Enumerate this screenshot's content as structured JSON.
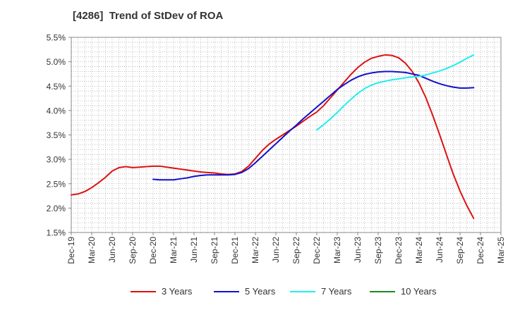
{
  "chart_data": {
    "type": "line",
    "title": "[4286]  Trend of StDev of ROA",
    "xlabel": "",
    "ylabel": "",
    "x_ticks": [
      "Dec-19",
      "Mar-20",
      "Jun-20",
      "Sep-20",
      "Dec-20",
      "Mar-21",
      "Jun-21",
      "Sep-21",
      "Dec-21",
      "Mar-22",
      "Jun-22",
      "Sep-22",
      "Dec-22",
      "Mar-23",
      "Jun-23",
      "Sep-23",
      "Dec-23",
      "Mar-24",
      "Jun-24",
      "Sep-24",
      "Dec-24",
      "Mar-25"
    ],
    "y_ticks": [
      "1.5%",
      "2.0%",
      "2.5%",
      "3.0%",
      "3.5%",
      "4.0%",
      "4.5%",
      "5.0%",
      "5.5%"
    ],
    "ylim": [
      1.5,
      5.5
    ],
    "y_unit": "%",
    "grid": true,
    "legend_position": "bottom",
    "series": [
      {
        "name": "3 Years",
        "color": "#dd1111",
        "points": [
          [
            "Dec-19",
            2.27
          ],
          [
            "Jan-20",
            2.29
          ],
          [
            "Feb-20",
            2.34
          ],
          [
            "Mar-20",
            2.42
          ],
          [
            "Apr-20",
            2.52
          ],
          [
            "May-20",
            2.63
          ],
          [
            "Jun-20",
            2.76
          ],
          [
            "Jul-20",
            2.83
          ],
          [
            "Aug-20",
            2.85
          ],
          [
            "Sep-20",
            2.83
          ],
          [
            "Oct-20",
            2.84
          ],
          [
            "Nov-20",
            2.85
          ],
          [
            "Dec-20",
            2.86
          ],
          [
            "Jan-21",
            2.86
          ],
          [
            "Feb-21",
            2.84
          ],
          [
            "Mar-21",
            2.82
          ],
          [
            "Apr-21",
            2.8
          ],
          [
            "May-21",
            2.78
          ],
          [
            "Jun-21",
            2.76
          ],
          [
            "Jul-21",
            2.74
          ],
          [
            "Aug-21",
            2.73
          ],
          [
            "Sep-21",
            2.72
          ],
          [
            "Oct-21",
            2.7
          ],
          [
            "Nov-21",
            2.69
          ],
          [
            "Dec-21",
            2.7
          ],
          [
            "Jan-22",
            2.75
          ],
          [
            "Feb-22",
            2.86
          ],
          [
            "Mar-22",
            3.02
          ],
          [
            "Apr-22",
            3.18
          ],
          [
            "May-22",
            3.31
          ],
          [
            "Jun-22",
            3.41
          ],
          [
            "Jul-22",
            3.5
          ],
          [
            "Aug-22",
            3.59
          ],
          [
            "Sep-22",
            3.68
          ],
          [
            "Oct-22",
            3.78
          ],
          [
            "Nov-22",
            3.88
          ],
          [
            "Dec-22",
            3.97
          ],
          [
            "Jan-23",
            4.1
          ],
          [
            "Feb-23",
            4.26
          ],
          [
            "Mar-23",
            4.42
          ],
          [
            "Apr-23",
            4.58
          ],
          [
            "May-23",
            4.74
          ],
          [
            "Jun-23",
            4.88
          ],
          [
            "Jul-23",
            4.99
          ],
          [
            "Aug-23",
            5.07
          ],
          [
            "Sep-23",
            5.11
          ],
          [
            "Oct-23",
            5.14
          ],
          [
            "Nov-23",
            5.13
          ],
          [
            "Dec-23",
            5.08
          ],
          [
            "Jan-24",
            4.97
          ],
          [
            "Feb-24",
            4.8
          ],
          [
            "Mar-24",
            4.56
          ],
          [
            "Apr-24",
            4.26
          ],
          [
            "May-24",
            3.9
          ],
          [
            "Jun-24",
            3.51
          ],
          [
            "Jul-24",
            3.1
          ],
          [
            "Aug-24",
            2.7
          ],
          [
            "Sep-24",
            2.35
          ],
          [
            "Oct-24",
            2.05
          ],
          [
            "Nov-24",
            1.79
          ]
        ]
      },
      {
        "name": "5 Years",
        "color": "#1111cc",
        "points": [
          [
            "Dec-20",
            2.59
          ],
          [
            "Jan-21",
            2.58
          ],
          [
            "Feb-21",
            2.58
          ],
          [
            "Mar-21",
            2.58
          ],
          [
            "Apr-21",
            2.6
          ],
          [
            "May-21",
            2.62
          ],
          [
            "Jun-21",
            2.65
          ],
          [
            "Jul-21",
            2.67
          ],
          [
            "Aug-21",
            2.68
          ],
          [
            "Sep-21",
            2.68
          ],
          [
            "Oct-21",
            2.68
          ],
          [
            "Nov-21",
            2.68
          ],
          [
            "Dec-21",
            2.69
          ],
          [
            "Jan-22",
            2.73
          ],
          [
            "Feb-22",
            2.81
          ],
          [
            "Mar-22",
            2.93
          ],
          [
            "Apr-22",
            3.06
          ],
          [
            "May-22",
            3.19
          ],
          [
            "Jun-22",
            3.32
          ],
          [
            "Jul-22",
            3.45
          ],
          [
            "Aug-22",
            3.58
          ],
          [
            "Sep-22",
            3.7
          ],
          [
            "Oct-22",
            3.83
          ],
          [
            "Nov-22",
            3.95
          ],
          [
            "Dec-22",
            4.07
          ],
          [
            "Jan-23",
            4.19
          ],
          [
            "Feb-23",
            4.31
          ],
          [
            "Mar-23",
            4.43
          ],
          [
            "Apr-23",
            4.53
          ],
          [
            "May-23",
            4.62
          ],
          [
            "Jun-23",
            4.69
          ],
          [
            "Jul-23",
            4.74
          ],
          [
            "Aug-23",
            4.77
          ],
          [
            "Sep-23",
            4.79
          ],
          [
            "Oct-23",
            4.8
          ],
          [
            "Nov-23",
            4.8
          ],
          [
            "Dec-23",
            4.79
          ],
          [
            "Jan-24",
            4.78
          ],
          [
            "Feb-24",
            4.75
          ],
          [
            "Mar-24",
            4.72
          ],
          [
            "Apr-24",
            4.66
          ],
          [
            "May-24",
            4.6
          ],
          [
            "Jun-24",
            4.55
          ],
          [
            "Jul-24",
            4.51
          ],
          [
            "Aug-24",
            4.48
          ],
          [
            "Sep-24",
            4.46
          ],
          [
            "Oct-24",
            4.46
          ],
          [
            "Nov-24",
            4.47
          ]
        ]
      },
      {
        "name": "7 Years",
        "color": "#22eeee",
        "points": [
          [
            "Dec-22",
            3.6
          ],
          [
            "Jan-23",
            3.71
          ],
          [
            "Feb-23",
            3.83
          ],
          [
            "Mar-23",
            3.96
          ],
          [
            "Apr-23",
            4.1
          ],
          [
            "May-23",
            4.23
          ],
          [
            "Jun-23",
            4.35
          ],
          [
            "Jul-23",
            4.45
          ],
          [
            "Aug-23",
            4.52
          ],
          [
            "Sep-23",
            4.57
          ],
          [
            "Oct-23",
            4.6
          ],
          [
            "Nov-23",
            4.63
          ],
          [
            "Dec-23",
            4.65
          ],
          [
            "Jan-24",
            4.67
          ],
          [
            "Feb-24",
            4.69
          ],
          [
            "Mar-24",
            4.7
          ],
          [
            "Apr-24",
            4.73
          ],
          [
            "May-24",
            4.77
          ],
          [
            "Jun-24",
            4.81
          ],
          [
            "Jul-24",
            4.86
          ],
          [
            "Aug-24",
            4.92
          ],
          [
            "Sep-24",
            4.99
          ],
          [
            "Oct-24",
            5.07
          ],
          [
            "Nov-24",
            5.14
          ]
        ]
      },
      {
        "name": "10 Years",
        "color": "#228822",
        "points": []
      }
    ]
  }
}
